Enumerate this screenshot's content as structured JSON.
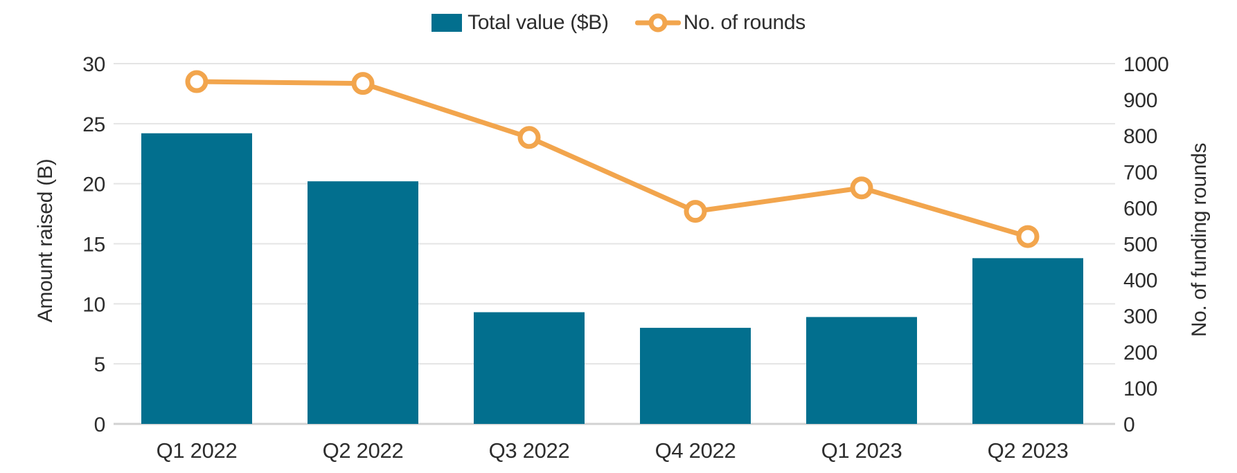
{
  "legend": {
    "bar_label": "Total value ($B)",
    "line_label": "No. of rounds"
  },
  "colors": {
    "bar": "#026f8e",
    "line": "#f2a54d",
    "grid": "#e4e4e4",
    "zero_line": "#d2d2d2",
    "text": "#2d2d2d"
  },
  "chart_data": {
    "type": "bar",
    "subtype": "bar+line combo, dual axis",
    "categories": [
      "Q1 2022",
      "Q2 2022",
      "Q3 2022",
      "Q4 2022",
      "Q1 2023",
      "Q2 2023"
    ],
    "series": [
      {
        "name": "Total value ($B)",
        "type": "bar",
        "axis": "left",
        "color": "#026f8e",
        "values": [
          24.2,
          20.2,
          9.3,
          8.0,
          8.9,
          13.8
        ]
      },
      {
        "name": "No. of rounds",
        "type": "line",
        "axis": "right",
        "color": "#f2a54d",
        "marker": "open-circle",
        "values": [
          950,
          945,
          795,
          590,
          655,
          520
        ]
      }
    ],
    "left_axis": {
      "label": "Amount raised (B)",
      "min": 0,
      "max": 30,
      "ticks": [
        0,
        5,
        10,
        15,
        20,
        25,
        30
      ]
    },
    "right_axis": {
      "label": "No. of funding rounds",
      "min": 0,
      "max": 1000,
      "ticks": [
        0,
        100,
        200,
        300,
        400,
        500,
        600,
        700,
        800,
        900,
        1000
      ]
    },
    "grid": "horizontal only, at left-axis ticks",
    "legend_position": "top-center"
  }
}
